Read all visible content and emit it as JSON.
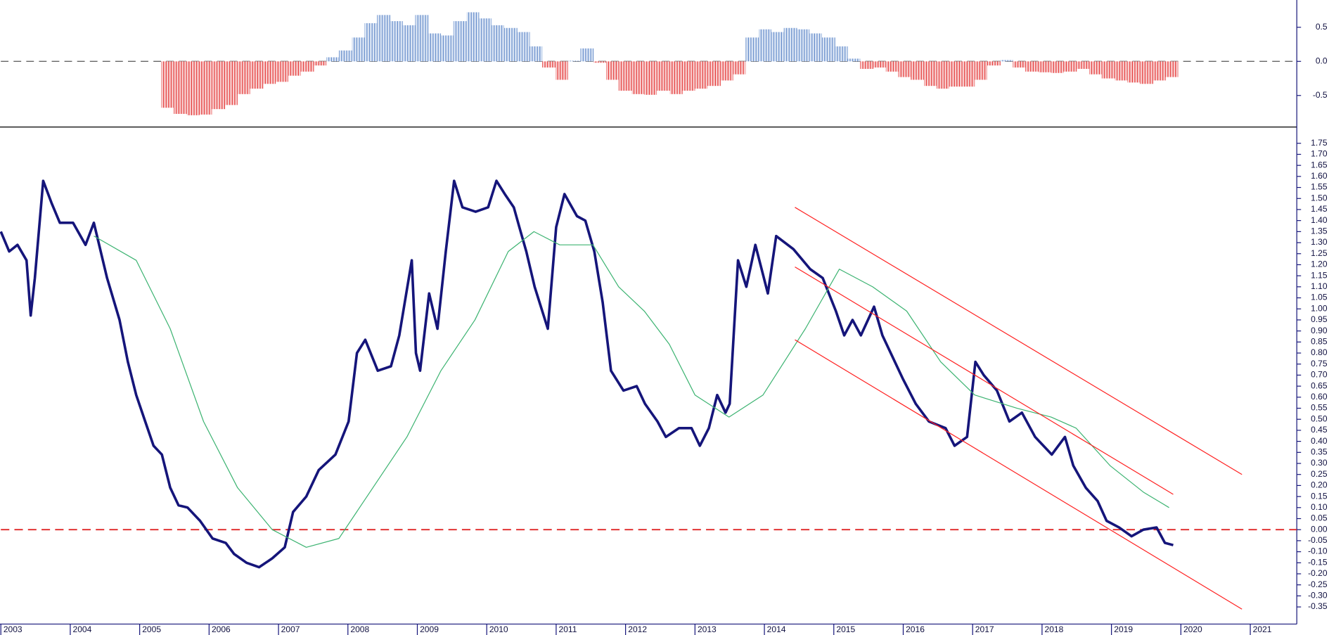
{
  "chart_data": [
    {
      "type": "bar",
      "xlim": [
        2003,
        2021.67
      ],
      "ylim": [
        -0.95,
        0.9
      ],
      "yticks": [
        -0.5,
        {
          "value": 0,
          "label": "0.0"
        },
        0.5
      ],
      "positive_color": "#4a78c0",
      "negative_color": "#e01818",
      "hline": 0,
      "hline_color": "#555555",
      "x": [
        2005.31,
        2005.49,
        2005.68,
        2005.86,
        2006.04,
        2006.23,
        2006.41,
        2006.59,
        2006.78,
        2006.96,
        2007.14,
        2007.32,
        2007.51,
        2007.69,
        2007.87,
        2008.06,
        2008.24,
        2008.42,
        2008.61,
        2008.79,
        2008.97,
        2009.16,
        2009.34,
        2009.52,
        2009.71,
        2009.89,
        2010.07,
        2010.25,
        2010.44,
        2010.62,
        2010.8,
        2010.99,
        2011.17,
        2011.35,
        2011.54,
        2011.72,
        2011.9,
        2012.09,
        2012.27,
        2012.45,
        2012.64,
        2012.82,
        2013.0,
        2013.18,
        2013.37,
        2013.55,
        2013.73,
        2013.92,
        2014.1,
        2014.28,
        2014.47,
        2014.65,
        2014.83,
        2015.02,
        2015.2,
        2015.38,
        2015.57,
        2015.75,
        2015.93,
        2016.11,
        2016.3,
        2016.48,
        2016.66,
        2016.85,
        2017.03,
        2017.21,
        2017.4,
        2017.58,
        2017.76,
        2017.95,
        2018.13,
        2018.31,
        2018.5,
        2018.68,
        2018.86,
        2019.05,
        2019.23,
        2019.41,
        2019.6,
        2019.78
      ],
      "values": [
        -0.68,
        -0.77,
        -0.79,
        -0.78,
        -0.7,
        -0.64,
        -0.48,
        -0.4,
        -0.33,
        -0.3,
        -0.21,
        -0.15,
        -0.06,
        0.06,
        0.16,
        0.35,
        0.56,
        0.68,
        0.59,
        0.53,
        0.68,
        0.41,
        0.38,
        0.59,
        0.72,
        0.63,
        0.53,
        0.49,
        0.43,
        0.22,
        -0.09,
        -0.27,
        0.01,
        0.19,
        -0.02,
        -0.27,
        -0.43,
        -0.48,
        -0.49,
        -0.43,
        -0.48,
        -0.43,
        -0.4,
        -0.36,
        -0.28,
        -0.19,
        0.35,
        0.47,
        0.43,
        0.49,
        0.47,
        0.41,
        0.35,
        0.22,
        0.04,
        -0.11,
        -0.09,
        -0.15,
        -0.23,
        -0.27,
        -0.36,
        -0.4,
        -0.37,
        -0.37,
        -0.27,
        -0.06,
        0.02,
        -0.09,
        -0.15,
        -0.16,
        -0.17,
        -0.15,
        -0.11,
        -0.19,
        -0.25,
        -0.28,
        -0.31,
        -0.33,
        -0.28,
        -0.23
      ]
    },
    {
      "type": "line",
      "xlim": [
        2003,
        2021.67
      ],
      "xticks": [
        2003,
        2004,
        2005,
        2006,
        2007,
        2008,
        2009,
        2010,
        2011,
        2012,
        2013,
        2014,
        2015,
        2016,
        2017,
        2018,
        2019,
        2020,
        2021
      ],
      "ylim": [
        -0.42,
        1.82
      ],
      "yticks": [
        1.75,
        {
          "value": 1.7,
          "label": "1.70"
        },
        1.65,
        {
          "value": 1.6,
          "label": "1.60"
        },
        1.55,
        {
          "value": 1.5,
          "label": "1.50"
        },
        1.45,
        {
          "value": 1.4,
          "label": "1.40"
        },
        1.35,
        {
          "value": 1.3,
          "label": "1.30"
        },
        1.25,
        {
          "value": 1.2,
          "label": "1.20"
        },
        1.15,
        {
          "value": 1.1,
          "label": "1.10"
        },
        1.05,
        {
          "value": 1,
          "label": "1.00"
        },
        0.95,
        {
          "value": 0.9,
          "label": "0.90"
        },
        0.85,
        {
          "value": 0.8,
          "label": "0.80"
        },
        0.75,
        {
          "value": 0.7,
          "label": "0.70"
        },
        0.65,
        {
          "value": 0.6,
          "label": "0.60"
        },
        0.55,
        {
          "value": 0.5,
          "label": "0.50"
        },
        0.45,
        {
          "value": 0.4,
          "label": "0.40"
        },
        0.35,
        {
          "value": 0.3,
          "label": "0.30"
        },
        0.25,
        {
          "value": 0.2,
          "label": "0.20"
        },
        0.15,
        {
          "value": 0.1,
          "label": "0.10"
        },
        0.05,
        {
          "value": 0,
          "label": "0.00"
        },
        -0.05,
        {
          "value": -0.1,
          "label": "-0.10"
        },
        -0.15,
        {
          "value": -0.2,
          "label": "-0.20"
        },
        -0.25,
        {
          "value": -0.3,
          "label": "-0.30"
        },
        -0.35
      ],
      "hline": 0,
      "hline_color": "#e02828",
      "series": [
        {
          "color": "#15157a",
          "x": [
            2003.0,
            2003.12,
            2003.24,
            2003.37,
            2003.43,
            2003.49,
            2003.61,
            2003.73,
            2003.85,
            2004.04,
            2004.22,
            2004.34,
            2004.53,
            2004.71,
            2004.83,
            2004.95,
            2005.08,
            2005.2,
            2005.32,
            2005.44,
            2005.56,
            2005.69,
            2005.87,
            2006.05,
            2006.24,
            2006.36,
            2006.54,
            2006.72,
            2006.91,
            2007.09,
            2007.21,
            2007.4,
            2007.58,
            2007.82,
            2008.01,
            2008.13,
            2008.25,
            2008.43,
            2008.62,
            2008.74,
            2008.92,
            2008.98,
            2009.04,
            2009.17,
            2009.29,
            2009.41,
            2009.53,
            2009.65,
            2009.84,
            2010.02,
            2010.14,
            2010.26,
            2010.39,
            2010.47,
            2010.57,
            2010.69,
            2010.88,
            2011.0,
            2011.12,
            2011.3,
            2011.42,
            2011.55,
            2011.67,
            2011.79,
            2011.97,
            2012.16,
            2012.28,
            2012.46,
            2012.58,
            2012.77,
            2012.95,
            2013.07,
            2013.2,
            2013.32,
            2013.44,
            2013.5,
            2013.62,
            2013.74,
            2013.87,
            2014.05,
            2014.17,
            2014.42,
            2014.66,
            2014.84,
            2015.03,
            2015.15,
            2015.27,
            2015.39,
            2015.58,
            2015.7,
            2015.88,
            2016.0,
            2016.18,
            2016.37,
            2016.61,
            2016.74,
            2016.92,
            2017.04,
            2017.16,
            2017.35,
            2017.53,
            2017.71,
            2017.9,
            2018.14,
            2018.33,
            2018.45,
            2018.63,
            2018.8,
            2018.93,
            2019.11,
            2019.29,
            2019.46,
            2019.65,
            2019.77,
            2019.89
          ],
          "values": [
            1.35,
            1.26,
            1.29,
            1.22,
            0.97,
            1.14,
            1.58,
            1.48,
            1.39,
            1.39,
            1.29,
            1.39,
            1.14,
            0.95,
            0.76,
            0.61,
            0.49,
            0.38,
            0.34,
            0.19,
            0.11,
            0.1,
            0.04,
            -0.04,
            -0.06,
            -0.11,
            -0.15,
            -0.17,
            -0.13,
            -0.08,
            0.08,
            0.15,
            0.27,
            0.34,
            0.49,
            0.8,
            0.86,
            0.72,
            0.74,
            0.88,
            1.22,
            0.8,
            0.72,
            1.07,
            0.91,
            1.26,
            1.58,
            1.46,
            1.44,
            1.46,
            1.58,
            1.52,
            1.46,
            1.37,
            1.26,
            1.1,
            0.91,
            1.37,
            1.52,
            1.42,
            1.4,
            1.26,
            1.03,
            0.72,
            0.63,
            0.65,
            0.57,
            0.49,
            0.42,
            0.46,
            0.46,
            0.38,
            0.46,
            0.61,
            0.53,
            0.57,
            1.22,
            1.1,
            1.29,
            1.07,
            1.33,
            1.27,
            1.18,
            1.14,
            0.99,
            0.88,
            0.95,
            0.88,
            1.01,
            0.88,
            0.76,
            0.68,
            0.57,
            0.49,
            0.46,
            0.38,
            0.42,
            0.76,
            0.7,
            0.63,
            0.49,
            0.53,
            0.42,
            0.34,
            0.42,
            0.29,
            0.19,
            0.13,
            0.04,
            0.01,
            -0.03,
            0.0,
            0.01,
            -0.06,
            -0.07
          ]
        },
        {
          "color": "#3cb371",
          "x": [
            2004.34,
            2004.95,
            2005.44,
            2005.92,
            2006.41,
            2006.91,
            2007.4,
            2007.87,
            2008.36,
            2008.85,
            2009.34,
            2009.83,
            2010.31,
            2010.68,
            2011.05,
            2011.53,
            2011.9,
            2012.27,
            2012.63,
            2013.0,
            2013.49,
            2013.98,
            2014.59,
            2015.08,
            2015.56,
            2016.05,
            2016.54,
            2017.03,
            2017.64,
            2018.13,
            2018.49,
            2018.98,
            2019.46,
            2019.83
          ],
          "values": [
            1.33,
            1.22,
            0.91,
            0.49,
            0.19,
            0.0,
            -0.08,
            -0.04,
            0.19,
            0.42,
            0.72,
            0.95,
            1.26,
            1.35,
            1.29,
            1.29,
            1.1,
            0.99,
            0.84,
            0.61,
            0.51,
            0.61,
            0.91,
            1.18,
            1.1,
            0.99,
            0.76,
            0.61,
            0.55,
            0.51,
            0.46,
            0.29,
            0.17,
            0.1
          ]
        },
        {
          "color": "#ff2020",
          "x": [
            2014.44,
            2020.88
          ],
          "values": [
            1.46,
            0.25
          ]
        },
        {
          "color": "#ff2020",
          "x": [
            2014.44,
            2019.89
          ],
          "values": [
            1.19,
            0.16
          ]
        },
        {
          "color": "#ff2020",
          "x": [
            2014.44,
            2020.88
          ],
          "values": [
            0.86,
            -0.36
          ]
        }
      ]
    }
  ]
}
